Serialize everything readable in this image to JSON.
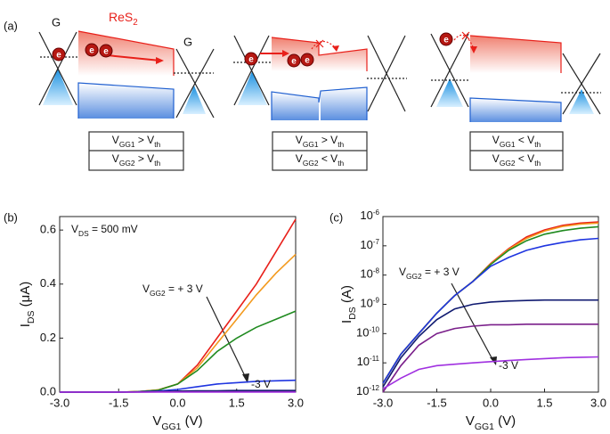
{
  "panel_a": {
    "label": "(a)",
    "gate_left": "G",
    "gate_right": "G",
    "channel": [
      "ReS",
      "2"
    ],
    "electron": "e",
    "conditions": [
      [
        [
          "V",
          "GG1",
          " > V",
          "th"
        ],
        [
          "V",
          "GG2",
          " > V",
          "th"
        ]
      ],
      [
        [
          "V",
          "GG1",
          " > V",
          "th"
        ],
        [
          "V",
          "GG2",
          " < V",
          "th"
        ]
      ],
      [
        [
          "V",
          "GG1",
          " < V",
          "th"
        ],
        [
          "V",
          "GG2",
          " < V",
          "th"
        ]
      ]
    ]
  },
  "chart_data": [
    {
      "type": "line",
      "panel": "(b)",
      "xlabel": [
        "V",
        "GG1",
        " (V)"
      ],
      "ylabel": [
        "I",
        "DS",
        " (μA)"
      ],
      "annotations": [
        [
          "V",
          "DS",
          " = 500 mV"
        ],
        [
          "V",
          "GG2",
          " = + 3 V"
        ],
        [
          "-3 V"
        ]
      ],
      "log_y": false,
      "x": [
        -3,
        -2.5,
        -2,
        -1.5,
        -1,
        -0.5,
        0,
        0.5,
        1,
        1.5,
        2,
        2.5,
        3
      ],
      "xlim": [
        -3,
        3
      ],
      "xticks": [
        {
          "value": -3,
          "label": "-3.0"
        },
        {
          "value": -1.5,
          "label": "-1.5"
        },
        {
          "value": 0,
          "label": "0.0"
        },
        {
          "value": 1.5,
          "label": "1.5"
        },
        {
          "value": 3,
          "label": "3.0"
        }
      ],
      "ylim": [
        0,
        0.65
      ],
      "yticks": [
        {
          "value": 0,
          "label": "0.0"
        },
        {
          "value": 0.2,
          "label": "0.2"
        },
        {
          "value": 0.4,
          "label": "0.4"
        },
        {
          "value": 0.6,
          "label": "0.6"
        }
      ],
      "series": [
        {
          "color": "#e8201a",
          "values": [
            0,
            0,
            0,
            0,
            0.002,
            0.008,
            0.03,
            0.1,
            0.2,
            0.3,
            0.4,
            0.52,
            0.64
          ]
        },
        {
          "color": "#f39a1e",
          "values": [
            0,
            0,
            0,
            0,
            0.002,
            0.008,
            0.03,
            0.09,
            0.18,
            0.27,
            0.36,
            0.44,
            0.51
          ]
        },
        {
          "color": "#1f8a1f",
          "values": [
            0,
            0,
            0,
            0,
            0.002,
            0.007,
            0.03,
            0.08,
            0.15,
            0.2,
            0.24,
            0.27,
            0.3
          ]
        },
        {
          "color": "#1f35e0",
          "values": [
            0,
            0,
            0,
            0,
            0.001,
            0.004,
            0.01,
            0.02,
            0.03,
            0.035,
            0.04,
            0.042,
            0.044
          ]
        },
        {
          "color": "#101a70",
          "values": [
            0,
            0,
            0,
            0,
            0.001,
            0.002,
            0.004,
            0.005,
            0.005,
            0.006,
            0.006,
            0.006,
            0.006
          ]
        },
        {
          "color": "#7a1f8a",
          "values": [
            0,
            0,
            0,
            0,
            0,
            0.001,
            0.001,
            0.001,
            0.001,
            0.001,
            0.001,
            0.001,
            0.001
          ]
        },
        {
          "color": "#a030e0",
          "values": [
            0,
            0,
            0,
            0,
            0,
            0,
            0,
            0,
            0,
            0,
            0,
            0,
            0
          ]
        }
      ]
    },
    {
      "type": "line",
      "panel": "(c)",
      "xlabel": [
        "V",
        "GG1",
        " (V)"
      ],
      "ylabel": [
        "I",
        "DS",
        " (A)"
      ],
      "annotations": [
        [
          "V",
          "GG2",
          " = + 3 V"
        ],
        [
          "-3 V"
        ]
      ],
      "log_y": true,
      "x": [
        -3,
        -2.5,
        -2,
        -1.5,
        -1,
        -0.5,
        0,
        0.5,
        1,
        1.5,
        2,
        2.5,
        3
      ],
      "xlim": [
        -3,
        3
      ],
      "xticks": [
        {
          "value": -3,
          "label": "-3.0"
        },
        {
          "value": -1.5,
          "label": "-1.5"
        },
        {
          "value": 0,
          "label": "0.0"
        },
        {
          "value": 1.5,
          "label": "1.5"
        },
        {
          "value": 3,
          "label": "3.0"
        }
      ],
      "ylim": [
        1e-12,
        1e-06
      ],
      "yticks": [
        {
          "value": 1e-12,
          "label": "10-12"
        },
        {
          "value": 1e-11,
          "label": "10-11"
        },
        {
          "value": 1e-10,
          "label": "10-10"
        },
        {
          "value": 1e-09,
          "label": "10-9"
        },
        {
          "value": 1e-08,
          "label": "10-8"
        },
        {
          "value": 1e-07,
          "label": "10-7"
        },
        {
          "value": 1e-06,
          "label": "10-6"
        }
      ],
      "series": [
        {
          "color": "#e8201a",
          "values": [
            2e-12,
            2e-11,
            1e-10,
            5e-10,
            2e-09,
            6e-09,
            2.5e-08,
            8e-08,
            2e-07,
            3.5e-07,
            5e-07,
            6e-07,
            6.5e-07
          ]
        },
        {
          "color": "#f39a1e",
          "values": [
            2e-12,
            2e-11,
            1e-10,
            5e-10,
            2e-09,
            6e-09,
            2.4e-08,
            7.5e-08,
            1.8e-07,
            3.2e-07,
            4.6e-07,
            5.5e-07,
            6e-07
          ]
        },
        {
          "color": "#1f8a1f",
          "values": [
            2e-12,
            2e-11,
            1e-10,
            5e-10,
            2e-09,
            6e-09,
            2.3e-08,
            7e-08,
            1.5e-07,
            2.5e-07,
            3.3e-07,
            4e-07,
            4.5e-07
          ]
        },
        {
          "color": "#1f35e0",
          "values": [
            2e-12,
            2e-11,
            1e-10,
            5e-10,
            2e-09,
            6e-09,
            2e-08,
            4e-08,
            7e-08,
            1e-07,
            1.3e-07,
            1.6e-07,
            1.8e-07
          ]
        },
        {
          "color": "#101a70",
          "values": [
            1.5e-12,
            1.5e-11,
            8e-11,
            3e-10,
            7e-10,
            1e-09,
            1.2e-09,
            1.3e-09,
            1.35e-09,
            1.4e-09,
            1.4e-09,
            1.4e-09,
            1.4e-09
          ]
        },
        {
          "color": "#7a1f8a",
          "values": [
            1e-12,
            8e-12,
            4e-11,
            1e-10,
            1.5e-10,
            1.8e-10,
            2e-10,
            2e-10,
            2.1e-10,
            2.1e-10,
            2.1e-10,
            2.1e-10,
            2.1e-10
          ]
        },
        {
          "color": "#a030e0",
          "values": [
            1.3e-12,
            3e-12,
            6e-12,
            8e-12,
            9e-12,
            1e-11,
            1.1e-11,
            1.2e-11,
            1.3e-11,
            1.4e-11,
            1.5e-11,
            1.55e-11,
            1.6e-11
          ]
        }
      ]
    }
  ]
}
